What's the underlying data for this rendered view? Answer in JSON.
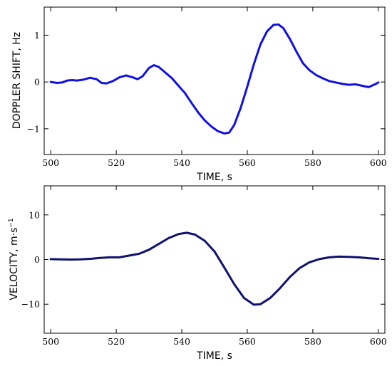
{
  "chart_data": [
    {
      "type": "line",
      "title": "",
      "xlabel": "TIME, s",
      "ylabel": "DOPPLER SHIFT, Hz",
      "xlim": [
        498,
        602
      ],
      "ylim": [
        -1.55,
        1.6
      ],
      "xticks": [
        500,
        520,
        540,
        560,
        580,
        600
      ],
      "yticks": [
        -1,
        0,
        1
      ],
      "xtick_labels": [
        "500",
        "520",
        "540",
        "560",
        "580",
        "600"
      ],
      "ytick_labels": [
        "−1",
        "0",
        "1"
      ],
      "grid": false,
      "series": [
        {
          "color": "#1010e0",
          "x": [
            500,
            502,
            503.5,
            505,
            506.5,
            508,
            510,
            512,
            514,
            515.5,
            517,
            519,
            521,
            523,
            525,
            526.5,
            528,
            530,
            531.5,
            533,
            535,
            537,
            539,
            541,
            543,
            545,
            547,
            549,
            551,
            553,
            554.5,
            556,
            558,
            560,
            562,
            564,
            566,
            568,
            569.5,
            571,
            573,
            575,
            577,
            579,
            581,
            583,
            585,
            587,
            589,
            591,
            593,
            595,
            597,
            599,
            600
          ],
          "y": [
            0.0,
            -0.02,
            -0.01,
            0.03,
            0.04,
            0.03,
            0.05,
            0.09,
            0.06,
            -0.02,
            -0.03,
            0.02,
            0.1,
            0.14,
            0.1,
            0.06,
            0.12,
            0.3,
            0.36,
            0.32,
            0.2,
            0.08,
            -0.08,
            -0.24,
            -0.45,
            -0.65,
            -0.82,
            -0.95,
            -1.05,
            -1.1,
            -1.08,
            -0.92,
            -0.55,
            -0.1,
            0.38,
            0.8,
            1.08,
            1.22,
            1.23,
            1.15,
            0.92,
            0.65,
            0.4,
            0.25,
            0.15,
            0.08,
            0.02,
            -0.01,
            -0.04,
            -0.06,
            -0.05,
            -0.08,
            -0.11,
            -0.05,
            -0.01
          ]
        }
      ]
    },
    {
      "type": "line",
      "title": "",
      "xlabel": "TIME, s",
      "ylabel": "VELOCITY, m·s",
      "ylabel_sup": "−1",
      "xlim": [
        498,
        602
      ],
      "ylim": [
        -16.5,
        16.5
      ],
      "xticks": [
        500,
        520,
        540,
        560,
        580,
        600
      ],
      "yticks": [
        -10,
        0,
        10
      ],
      "xtick_labels": [
        "500",
        "520",
        "540",
        "560",
        "580",
        "600"
      ],
      "ytick_labels": [
        "−10",
        "0",
        "10"
      ],
      "grid": false,
      "series": [
        {
          "color": "#101070",
          "x": [
            500,
            503,
            506,
            509,
            512,
            515,
            518,
            521,
            524,
            527,
            530,
            533,
            536,
            539,
            541.5,
            544,
            547,
            550,
            553,
            556,
            559,
            562,
            564,
            567,
            570,
            573,
            576,
            579,
            582,
            585,
            588,
            591,
            594,
            597,
            600
          ],
          "y": [
            0.1,
            0.05,
            0.0,
            0.05,
            0.15,
            0.35,
            0.5,
            0.5,
            0.9,
            1.3,
            2.2,
            3.5,
            4.8,
            5.7,
            6.0,
            5.6,
            4.2,
            1.8,
            -1.8,
            -5.5,
            -8.6,
            -10.1,
            -10.0,
            -8.6,
            -6.4,
            -3.9,
            -1.9,
            -0.6,
            0.1,
            0.5,
            0.65,
            0.6,
            0.5,
            0.3,
            0.15
          ]
        }
      ]
    }
  ]
}
